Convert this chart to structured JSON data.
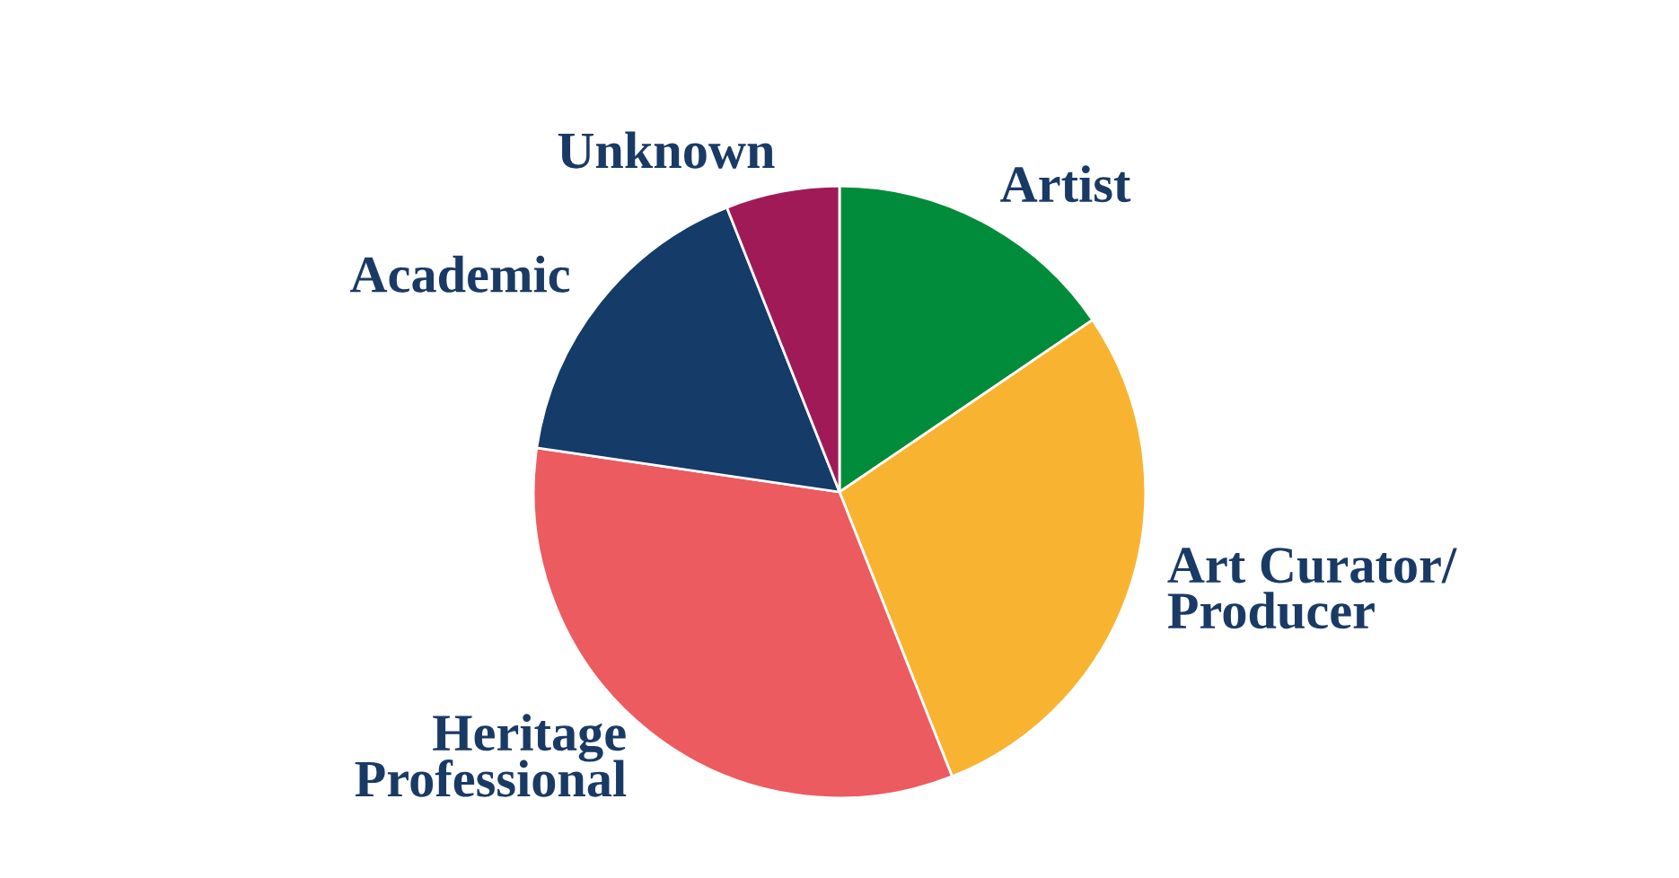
{
  "chart_data": {
    "type": "pie",
    "categories": [
      "Artist",
      "Art Curator/\nProducer",
      "Heritage\nProfessional",
      "Academic",
      "Unknown"
    ],
    "values": [
      15.5,
      28.5,
      33.3,
      16.7,
      6.0
    ],
    "colors": [
      "#008c3a",
      "#f8b331",
      "#eb5b60",
      "#153b68",
      "#a01a58"
    ]
  }
}
